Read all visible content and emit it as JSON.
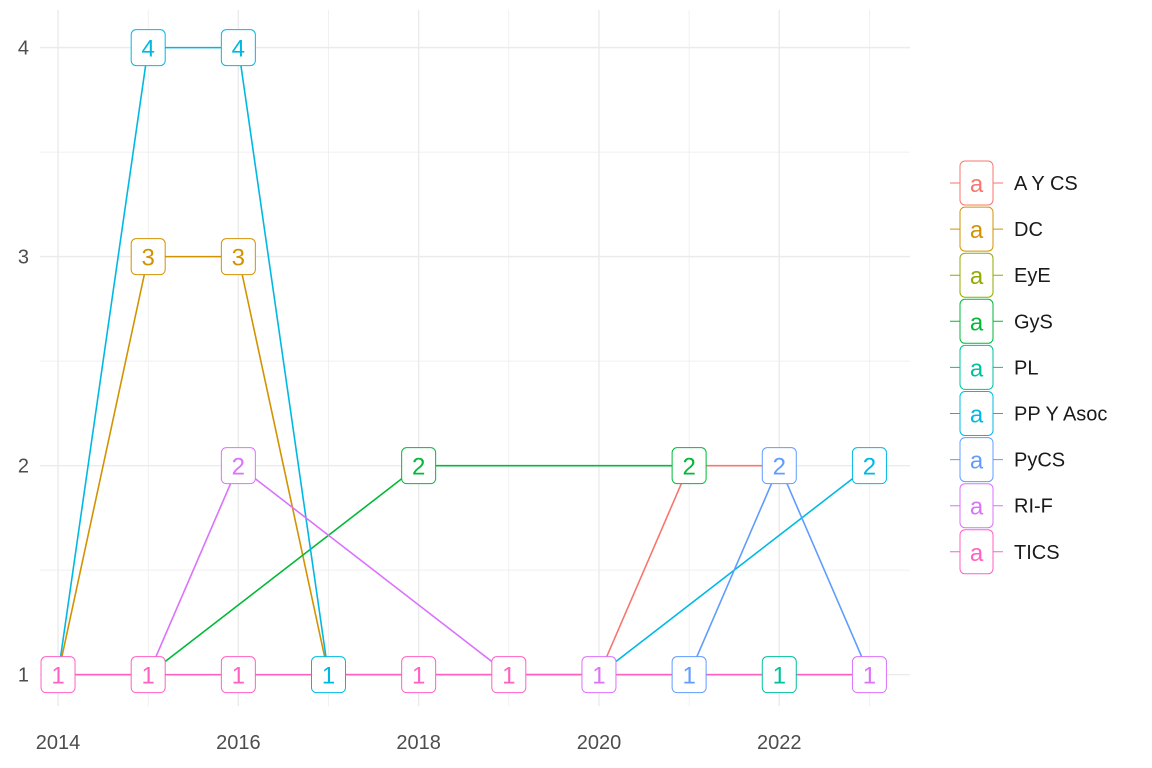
{
  "chart_data": {
    "type": "line",
    "xlim": [
      2013.8,
      2023.45
    ],
    "ylim": [
      0.85,
      4.18
    ],
    "x_ticks": [
      2014,
      2016,
      2018,
      2020,
      2022
    ],
    "y_ticks": [
      1,
      2,
      3,
      4
    ],
    "grid": true,
    "legend_position": "right",
    "legend_key_glyph": "a",
    "series": [
      {
        "name": "A Y CS",
        "color": "#F8766D",
        "points": [
          {
            "x": 2020,
            "y": 1
          },
          {
            "x": 2021,
            "y": 2
          },
          {
            "x": 2022,
            "y": 2
          }
        ]
      },
      {
        "name": "DC",
        "color": "#D39200",
        "points": [
          {
            "x": 2014,
            "y": 1
          },
          {
            "x": 2015,
            "y": 3
          },
          {
            "x": 2016,
            "y": 3
          },
          {
            "x": 2017,
            "y": 1
          }
        ]
      },
      {
        "name": "EyE",
        "color": "#93AA00",
        "points": []
      },
      {
        "name": "GyS",
        "color": "#00BA38",
        "points": [
          {
            "x": 2015,
            "y": 1
          },
          {
            "x": 2018,
            "y": 2
          },
          {
            "x": 2021,
            "y": 2
          }
        ]
      },
      {
        "name": "PL",
        "color": "#00C19F",
        "points": [
          {
            "x": 2022,
            "y": 1
          }
        ]
      },
      {
        "name": "PP Y Asoc",
        "color": "#00B9E3",
        "points": [
          {
            "x": 2014,
            "y": 1
          },
          {
            "x": 2015,
            "y": 4
          },
          {
            "x": 2016,
            "y": 4
          },
          {
            "x": 2017,
            "y": 1
          },
          {
            "x": 2020,
            "y": 1
          },
          {
            "x": 2023,
            "y": 2
          }
        ]
      },
      {
        "name": "PyCS",
        "color": "#619CFF",
        "points": [
          {
            "x": 2021,
            "y": 1
          },
          {
            "x": 2022,
            "y": 2
          },
          {
            "x": 2023,
            "y": 1
          }
        ]
      },
      {
        "name": "RI-F",
        "color": "#DB72FB",
        "points": [
          {
            "x": 2014,
            "y": 1
          },
          {
            "x": 2015,
            "y": 1
          },
          {
            "x": 2016,
            "y": 2
          },
          {
            "x": 2019,
            "y": 1
          },
          {
            "x": 2020,
            "y": 1
          },
          {
            "x": 2021,
            "y": 1
          },
          {
            "x": 2022,
            "y": 1
          },
          {
            "x": 2023,
            "y": 1
          }
        ]
      },
      {
        "name": "TICS",
        "color": "#FF61C3",
        "points": [
          {
            "x": 2014,
            "y": 1
          },
          {
            "x": 2015,
            "y": 1
          },
          {
            "x": 2016,
            "y": 1
          },
          {
            "x": 2017,
            "y": 1
          },
          {
            "x": 2018,
            "y": 1
          },
          {
            "x": 2019,
            "y": 1
          },
          {
            "x": 2020,
            "y": 1
          },
          {
            "x": 2023,
            "y": 1
          }
        ]
      }
    ],
    "labels": [
      {
        "x": 2015,
        "y": 4,
        "text": "4",
        "series": "PP Y Asoc"
      },
      {
        "x": 2016,
        "y": 4,
        "text": "4",
        "series": "PP Y Asoc"
      },
      {
        "x": 2015,
        "y": 3,
        "text": "3",
        "series": "DC"
      },
      {
        "x": 2016,
        "y": 3,
        "text": "3",
        "series": "DC"
      },
      {
        "x": 2016,
        "y": 2,
        "text": "2",
        "series": "RI-F"
      },
      {
        "x": 2018,
        "y": 2,
        "text": "2",
        "series": "GyS"
      },
      {
        "x": 2021,
        "y": 2,
        "text": "2",
        "series": "GyS"
      },
      {
        "x": 2022,
        "y": 2,
        "text": "2",
        "series": "PyCS"
      },
      {
        "x": 2023,
        "y": 2,
        "text": "2",
        "series": "PP Y Asoc"
      },
      {
        "x": 2014,
        "y": 1,
        "text": "1",
        "series": "TICS"
      },
      {
        "x": 2015,
        "y": 1,
        "text": "1",
        "series": "TICS"
      },
      {
        "x": 2016,
        "y": 1,
        "text": "1",
        "series": "TICS"
      },
      {
        "x": 2017,
        "y": 1,
        "text": "1",
        "series": "PP Y Asoc"
      },
      {
        "x": 2018,
        "y": 1,
        "text": "1",
        "series": "TICS"
      },
      {
        "x": 2019,
        "y": 1,
        "text": "1",
        "series": "TICS"
      },
      {
        "x": 2020,
        "y": 1,
        "text": "1",
        "series": "RI-F"
      },
      {
        "x": 2021,
        "y": 1,
        "text": "1",
        "series": "PyCS"
      },
      {
        "x": 2022,
        "y": 1,
        "text": "1",
        "series": "PL"
      },
      {
        "x": 2023,
        "y": 1,
        "text": "1",
        "series": "RI-F"
      }
    ]
  }
}
